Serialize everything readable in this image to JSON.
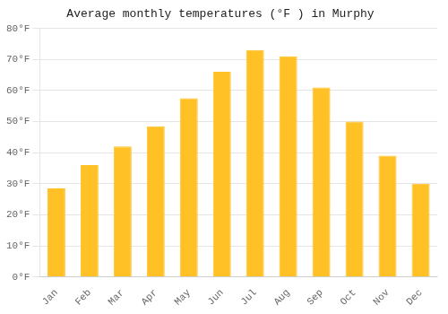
{
  "chart_data": {
    "type": "bar",
    "title": "Average monthly temperatures (°F ) in Murphy",
    "categories": [
      "Jan",
      "Feb",
      "Mar",
      "Apr",
      "May",
      "Jun",
      "Jul",
      "Aug",
      "Sep",
      "Oct",
      "Nov",
      "Dec"
    ],
    "values": [
      28.5,
      36,
      42,
      48.5,
      57.5,
      66,
      73,
      71,
      61,
      50,
      39,
      30
    ],
    "color": "#FFC125",
    "ylim": [
      0,
      80
    ],
    "yticks": [
      {
        "value": 0,
        "label": "0°F"
      },
      {
        "value": 10,
        "label": "10°F"
      },
      {
        "value": 20,
        "label": "20°F"
      },
      {
        "value": 30,
        "label": "30°F"
      },
      {
        "value": 40,
        "label": "40°F"
      },
      {
        "value": 50,
        "label": "50°F"
      },
      {
        "value": 60,
        "label": "60°F"
      },
      {
        "value": 70,
        "label": "70°F"
      },
      {
        "value": 80,
        "label": "80°F"
      }
    ],
    "grid": true
  }
}
